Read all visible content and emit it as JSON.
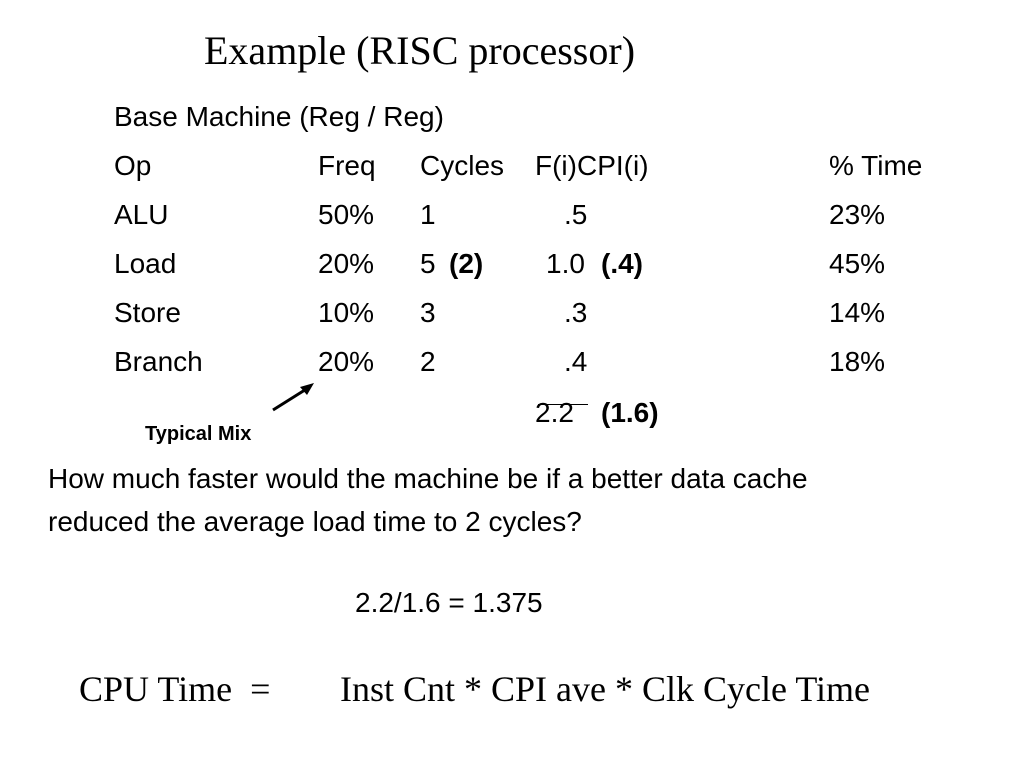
{
  "title": "Example (RISC processor)",
  "subtitle": "Base Machine (Reg / Reg)",
  "table": {
    "headers": {
      "op": "Op",
      "freq": "Freq",
      "cycles": "Cycles",
      "cpi": "F(i)CPI(i)",
      "time": "% Time"
    },
    "rows": [
      {
        "op": "ALU",
        "freq": "50%",
        "cycles": "1",
        "cycles_new": "",
        "cpi": ".5",
        "cpi_new": "",
        "time": "23%"
      },
      {
        "op": "Load",
        "freq": "20%",
        "cycles": "5",
        "cycles_new": "(2)",
        "cpi": "1.0",
        "cpi_new": "(.4)",
        "time": "45%"
      },
      {
        "op": "Store",
        "freq": "10%",
        "cycles": "3",
        "cycles_new": "",
        "cpi": ".3",
        "cpi_new": "",
        "time": "14%"
      },
      {
        "op": "Branch",
        "freq": "20%",
        "cycles": "2",
        "cycles_new": "",
        "cpi": ".4",
        "cpi_new": "",
        "time": "18%"
      }
    ],
    "total": {
      "cpi": "2.2",
      "cpi_new": "(1.6)"
    }
  },
  "annotation": "Typical Mix",
  "question": {
    "line1": "How much faster would the machine be if a better data cache",
    "line2": "reduced the average load time to 2 cycles?"
  },
  "answer": "2.2/1.6 = 1.375",
  "formula": {
    "lhs": "CPU Time  =",
    "rhs": "Inst Cnt * CPI ave * Clk Cycle Time"
  }
}
